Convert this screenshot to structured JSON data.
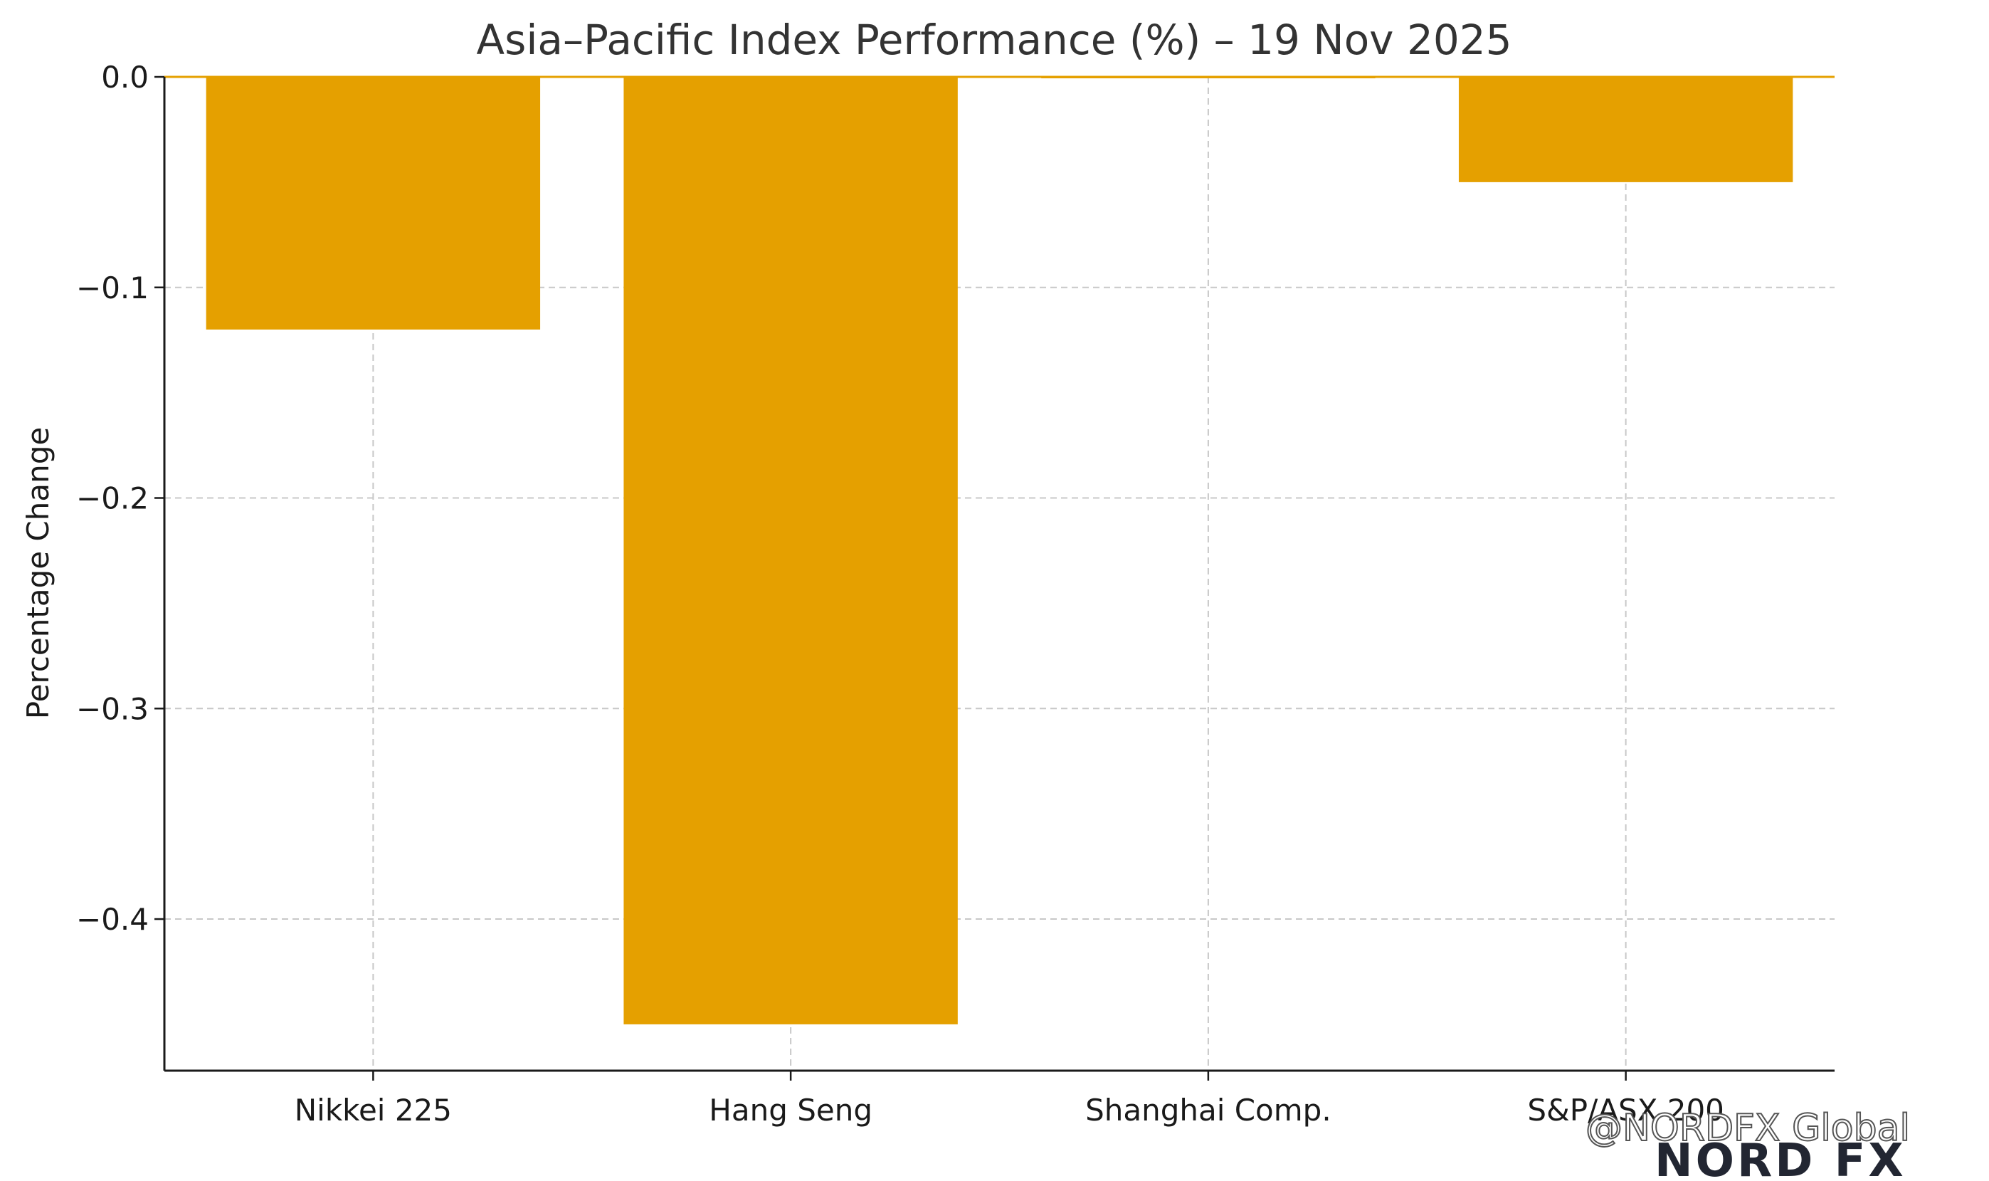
{
  "chart_data": {
    "type": "bar",
    "title": "Asia–Pacific Index Performance (%) – 19 Nov 2025",
    "xlabel": "",
    "ylabel": "Percentage Change",
    "categories": [
      "Nikkei 225",
      "Hang Seng",
      "Shanghai Comp.",
      "S&P/ASX 200"
    ],
    "values": [
      -0.12,
      -0.45,
      0.0,
      -0.05
    ],
    "ylim": [
      -0.472,
      0.0
    ],
    "yticks": [
      0.0,
      -0.1,
      -0.2,
      -0.3,
      -0.4
    ],
    "ytick_labels": [
      "0.0",
      "−0.1",
      "−0.2",
      "−0.3",
      "−0.4"
    ],
    "bar_color": "#E5A000",
    "grid": true
  },
  "watermark": {
    "handle": "@NORDFX Global",
    "brand": "NORD FX"
  },
  "colors": {
    "brand_dark": "#222632",
    "brand_green": "#3cb371",
    "brand_red": "#d9534f"
  }
}
